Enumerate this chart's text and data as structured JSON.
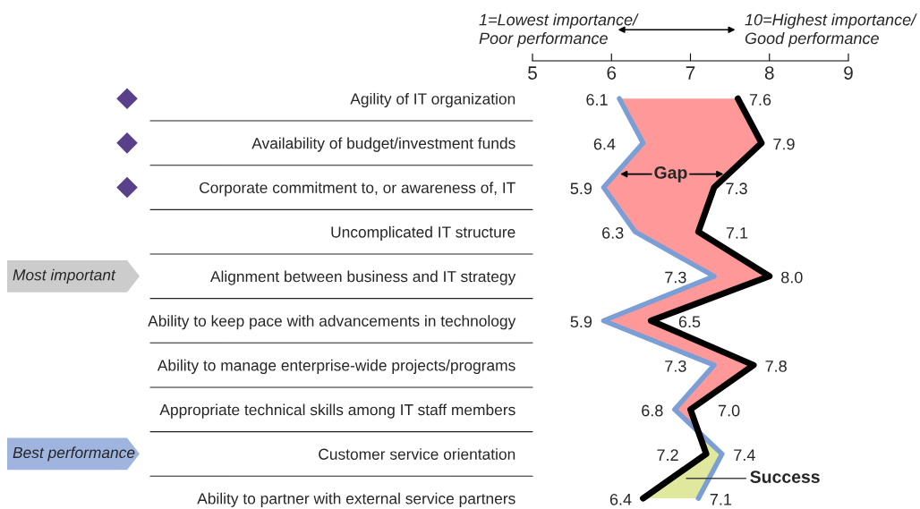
{
  "chart_data": {
    "type": "line",
    "orientation": "horizontal",
    "categories": [
      "Agility of IT organization",
      "Availability of budget/investment funds",
      "Corporate commitment to, or awareness of, IT",
      "Uncomplicated IT structure",
      "Alignment between business and IT strategy",
      "Ability to keep pace with advancements in technology",
      "Ability to manage enterprise-wide projects/programs",
      "Appropriate technical skills among IT staff members",
      "Customer service orientation",
      "Ability to partner with external service partners"
    ],
    "series": [
      {
        "color": "#000000",
        "values": [
          7.6,
          7.9,
          7.3,
          7.1,
          8.0,
          6.5,
          7.8,
          7.0,
          7.2,
          6.4
        ],
        "value_labels": [
          "7.6",
          "7.9",
          "7.3",
          "7.1",
          "8.0",
          "6.5",
          "7.8",
          "7.0",
          "7.2",
          "6.4"
        ]
      },
      {
        "color": "#7b9fd4",
        "values": [
          6.1,
          6.4,
          5.9,
          6.3,
          7.3,
          5.9,
          7.3,
          6.8,
          7.4,
          7.1
        ],
        "value_labels": [
          "6.1",
          "6.4",
          "5.9",
          "6.3",
          "7.3",
          "5.9",
          "7.3",
          "6.8",
          "7.4",
          "7.1"
        ]
      }
    ],
    "colors": [
      "#ff9999",
      "#dfe89c"
    ],
    "xlim": [
      5,
      9
    ],
    "xticks": [
      5,
      6,
      7,
      8,
      9
    ],
    "grid": false,
    "marker": "none",
    "line_style": "solid",
    "annotations": [
      "1=Lowest importance/\nPoor performance",
      "10=Highest importance/\nGood performance",
      "Most important",
      "Best performance",
      "Gap",
      "Success"
    ]
  }
}
